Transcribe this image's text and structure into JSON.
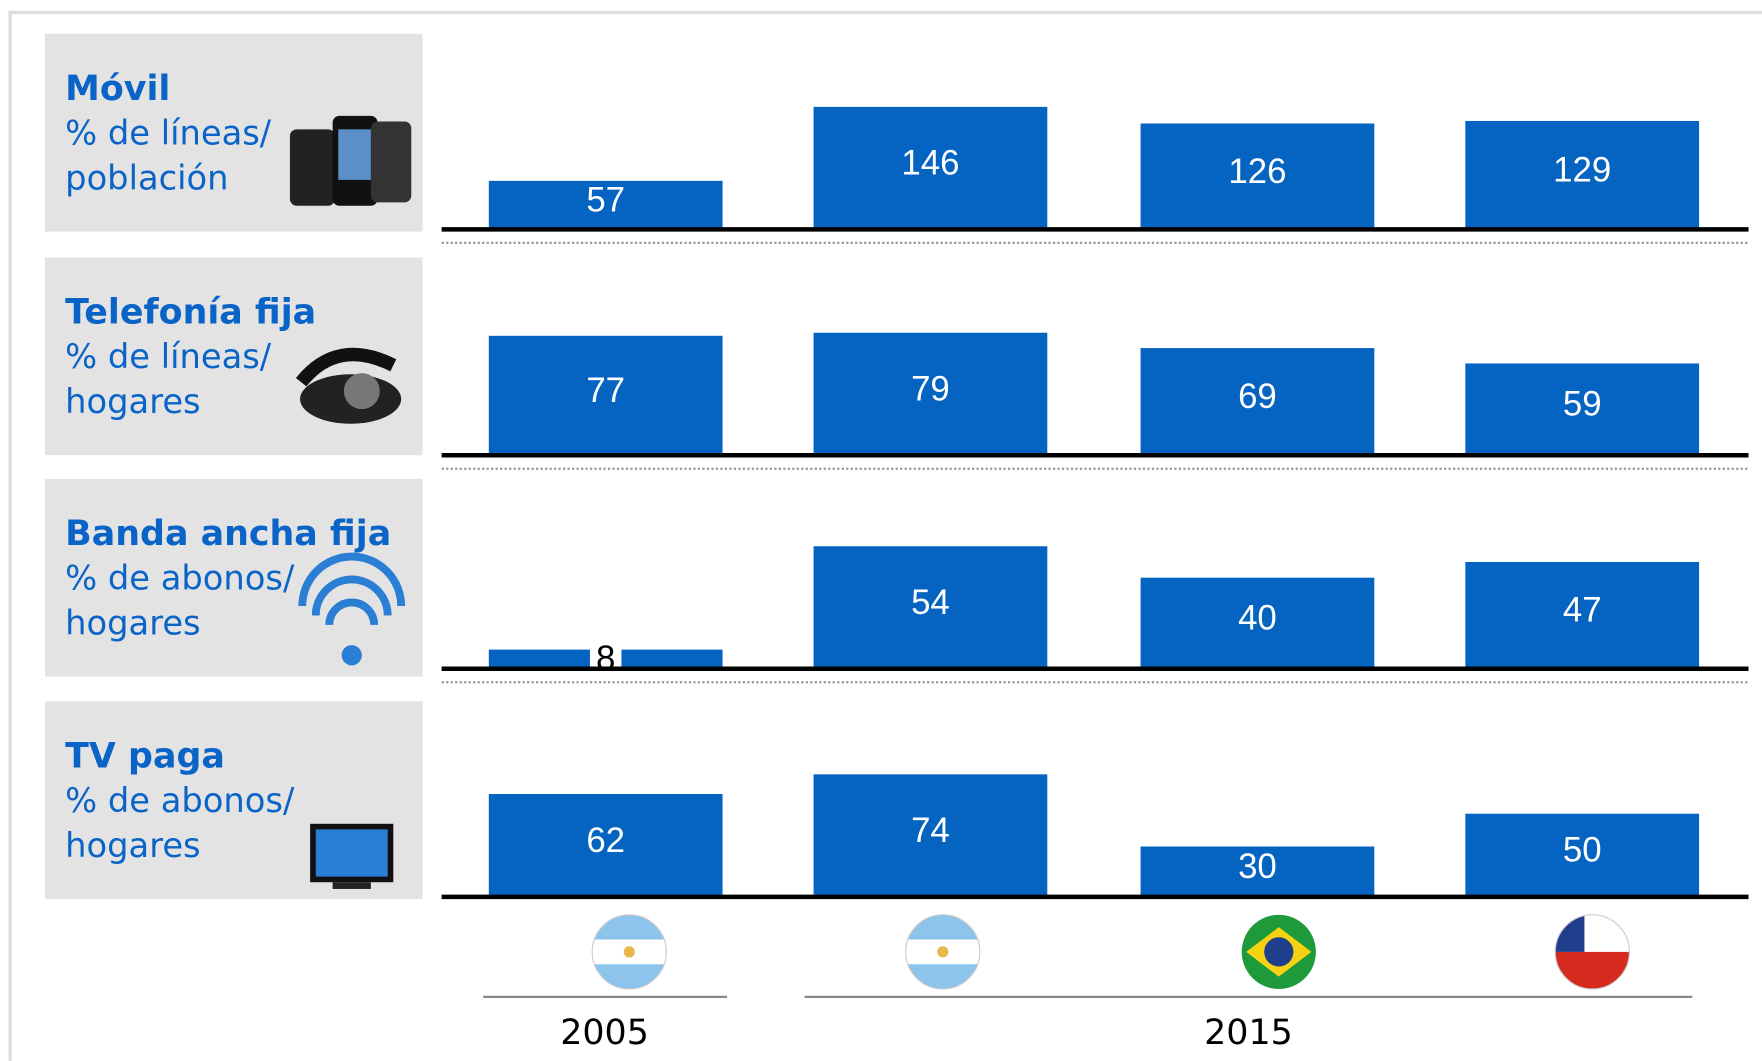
{
  "chart_data": [
    {
      "type": "bar",
      "title": "Móvil",
      "subtitle": [
        "% de líneas/",
        "población"
      ],
      "categories": [
        null,
        null,
        null,
        null
      ],
      "values": [
        57,
        146,
        126,
        129
      ],
      "color": "#0563c1"
    },
    {
      "type": "bar",
      "title": "Telefonía fija",
      "subtitle": [
        "% de líneas/",
        "hogares"
      ],
      "categories": [
        null,
        null,
        null,
        null
      ],
      "values": [
        77,
        79,
        69,
        59
      ],
      "color": "#0563c1"
    },
    {
      "type": "bar",
      "title": "Banda ancha fija",
      "subtitle": [
        "% de abonos/",
        "hogares"
      ],
      "categories": [
        null,
        null,
        null,
        null
      ],
      "values": [
        8,
        54,
        40,
        47
      ],
      "color": "#0563c1"
    },
    {
      "type": "bar",
      "title": "TV paga",
      "subtitle": [
        "% de abonos/",
        "hogares"
      ],
      "categories": [
        null,
        null,
        null,
        null
      ],
      "values": [
        62,
        74,
        30,
        50
      ],
      "color": "#0563c1"
    }
  ],
  "period_labels": [
    "2005",
    "2015"
  ]
}
